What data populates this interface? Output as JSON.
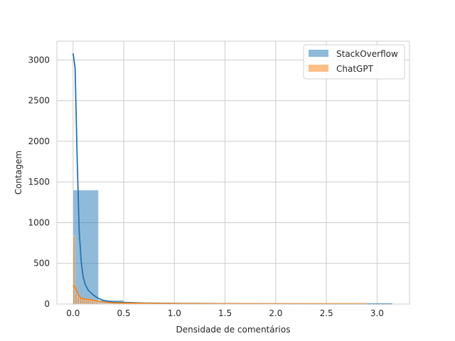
{
  "chart_data": {
    "type": "bar",
    "xlabel": "Densidade de comentários",
    "ylabel": "Contagem",
    "xlim": [
      -0.16,
      3.32
    ],
    "ylim": [
      0,
      3230
    ],
    "xticks": [
      0.0,
      0.5,
      1.0,
      1.5,
      2.0,
      2.5,
      3.0
    ],
    "xtick_labels": [
      "0.0",
      "0.5",
      "1.0",
      "1.5",
      "2.0",
      "2.5",
      "3.0"
    ],
    "yticks": [
      0,
      500,
      1000,
      1500,
      2000,
      2500,
      3000
    ],
    "ytick_labels": [
      "0",
      "500",
      "1000",
      "1500",
      "2000",
      "2500",
      "3000"
    ],
    "grid": true,
    "legend_position": "top-right",
    "series": [
      {
        "name": "StackOverflow",
        "color": "#1f77b4",
        "bin_width": 0.25,
        "bins": [
          {
            "x0": 0.0,
            "count": 1400
          },
          {
            "x0": 0.25,
            "count": 45
          },
          {
            "x0": 0.5,
            "count": 15
          },
          {
            "x0": 0.75,
            "count": 8
          },
          {
            "x0": 1.0,
            "count": 5
          },
          {
            "x0": 1.25,
            "count": 3
          },
          {
            "x0": 1.5,
            "count": 2
          },
          {
            "x0": 1.75,
            "count": 2
          },
          {
            "x0": 2.0,
            "count": 1
          },
          {
            "x0": 2.25,
            "count": 1
          },
          {
            "x0": 2.5,
            "count": 1
          },
          {
            "x0": 2.75,
            "count": 1
          },
          {
            "x0": 3.0,
            "count": 2
          }
        ],
        "kde": {
          "x": [
            0.0,
            0.02,
            0.04,
            0.06,
            0.08,
            0.1,
            0.12,
            0.15,
            0.2,
            0.25,
            0.3,
            0.4,
            0.5,
            0.7,
            1.0,
            1.5,
            2.0,
            2.5,
            3.0,
            3.15
          ],
          "y": [
            3080,
            2900,
            1800,
            900,
            520,
            330,
            240,
            170,
            110,
            70,
            45,
            25,
            20,
            12,
            8,
            5,
            3,
            2,
            2,
            2
          ]
        }
      },
      {
        "name": "ChatGPT",
        "color": "#ff7f0e",
        "bin_width": 0.02,
        "bins": [
          {
            "x0": 0.0,
            "count": 835
          },
          {
            "x0": 0.02,
            "count": 130
          },
          {
            "x0": 0.04,
            "count": 90
          },
          {
            "x0": 0.06,
            "count": 75
          },
          {
            "x0": 0.08,
            "count": 65
          },
          {
            "x0": 0.1,
            "count": 55
          },
          {
            "x0": 0.12,
            "count": 50
          },
          {
            "x0": 0.14,
            "count": 45
          },
          {
            "x0": 0.16,
            "count": 40
          },
          {
            "x0": 0.18,
            "count": 35
          },
          {
            "x0": 0.2,
            "count": 30
          },
          {
            "x0": 0.22,
            "count": 25
          },
          {
            "x0": 0.24,
            "count": 20
          },
          {
            "x0": 0.26,
            "count": 15
          },
          {
            "x0": 0.28,
            "count": 12
          },
          {
            "x0": 0.3,
            "count": 9
          },
          {
            "x0": 0.32,
            "count": 7
          },
          {
            "x0": 0.34,
            "count": 5
          },
          {
            "x0": 0.36,
            "count": 4
          },
          {
            "x0": 0.38,
            "count": 3
          }
        ],
        "kde": {
          "x": [
            0.0,
            0.02,
            0.04,
            0.06,
            0.08,
            0.1,
            0.15,
            0.2,
            0.25,
            0.3,
            0.4,
            0.5,
            0.7,
            1.0,
            1.5,
            2.0,
            2.5,
            2.9
          ],
          "y": [
            230,
            210,
            150,
            95,
            75,
            65,
            55,
            45,
            35,
            25,
            15,
            12,
            8,
            6,
            4,
            3,
            3,
            3
          ]
        }
      }
    ]
  }
}
